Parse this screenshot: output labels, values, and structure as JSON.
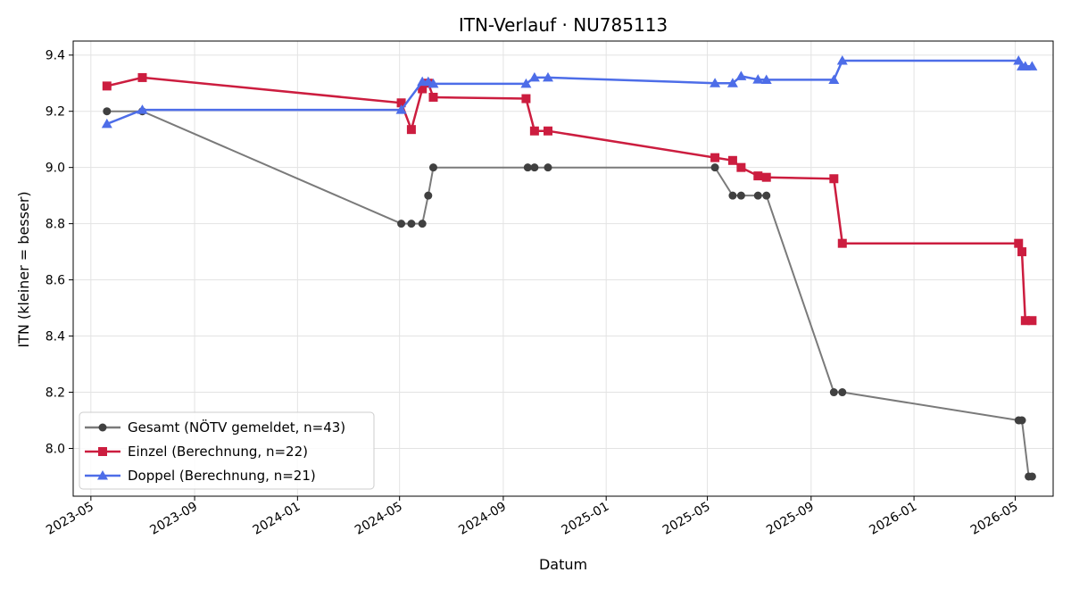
{
  "chart_data": {
    "type": "line",
    "title": "ITN-Verlauf · NU785113",
    "xlabel": "Datum",
    "ylabel": "ITN  (kleiner = besser)",
    "xlim": [
      "2023-04-10",
      "2026-06-15"
    ],
    "ylim": [
      7.83,
      9.45
    ],
    "x_ticks": [
      "2023-05",
      "2023-09",
      "2024-01",
      "2024-05",
      "2024-09",
      "2025-01",
      "2025-05",
      "2025-09",
      "2026-01",
      "2026-05"
    ],
    "y_ticks": [
      8.0,
      8.2,
      8.4,
      8.6,
      8.8,
      9.0,
      9.2,
      9.4
    ],
    "y_tick_labels": [
      "8.0",
      "8.2",
      "8.4",
      "8.6",
      "8.8",
      "9.0",
      "9.2",
      "9.4"
    ],
    "grid": true,
    "legend_position": "bottom-left",
    "series": [
      {
        "name": "Gesamt (NÖTV gemeldet, n=43)",
        "color": "#404040",
        "line_color": "#7a7a7a",
        "marker": "circle",
        "points": [
          [
            "2023-05-20",
            9.2
          ],
          [
            "2023-07-01",
            9.2
          ],
          [
            "2024-05-03",
            8.8
          ],
          [
            "2024-05-15",
            8.8
          ],
          [
            "2024-05-28",
            8.8
          ],
          [
            "2024-06-04",
            8.9
          ],
          [
            "2024-06-10",
            9.0
          ],
          [
            "2024-09-30",
            9.0
          ],
          [
            "2024-10-08",
            9.0
          ],
          [
            "2024-10-24",
            9.0
          ],
          [
            "2025-05-10",
            9.0
          ],
          [
            "2025-05-31",
            8.9
          ],
          [
            "2025-06-10",
            8.9
          ],
          [
            "2025-06-30",
            8.9
          ],
          [
            "2025-07-10",
            8.9
          ],
          [
            "2025-09-28",
            8.2
          ],
          [
            "2025-10-08",
            8.2
          ],
          [
            "2026-05-05",
            8.1
          ],
          [
            "2026-05-09",
            8.1
          ],
          [
            "2026-05-17",
            7.9
          ],
          [
            "2026-05-21",
            7.9
          ]
        ]
      },
      {
        "name": "Einzel (Berechnung, n=22)",
        "color": "#cc1d3f",
        "line_color": "#cc1d3f",
        "marker": "square",
        "points": [
          [
            "2023-05-20",
            9.29
          ],
          [
            "2023-07-01",
            9.32
          ],
          [
            "2024-05-03",
            9.23
          ],
          [
            "2024-05-15",
            9.135
          ],
          [
            "2024-05-28",
            9.28
          ],
          [
            "2024-06-04",
            9.3
          ],
          [
            "2024-06-10",
            9.25
          ],
          [
            "2024-09-28",
            9.245
          ],
          [
            "2024-10-08",
            9.13
          ],
          [
            "2024-10-24",
            9.13
          ],
          [
            "2025-05-10",
            9.035
          ],
          [
            "2025-05-31",
            9.025
          ],
          [
            "2025-06-10",
            9.0
          ],
          [
            "2025-06-30",
            8.97
          ],
          [
            "2025-07-10",
            8.965
          ],
          [
            "2025-09-28",
            8.96
          ],
          [
            "2025-10-08",
            8.73
          ],
          [
            "2026-05-05",
            8.73
          ],
          [
            "2026-05-09",
            8.7
          ],
          [
            "2026-05-13",
            8.455
          ],
          [
            "2026-05-21",
            8.455
          ]
        ]
      },
      {
        "name": "Doppel (Berechnung, n=21)",
        "color": "#4d6de8",
        "line_color": "#4d6de8",
        "marker": "triangle",
        "points": [
          [
            "2023-05-20",
            9.155
          ],
          [
            "2023-07-01",
            9.205
          ],
          [
            "2024-05-03",
            9.205
          ],
          [
            "2024-05-28",
            9.305
          ],
          [
            "2024-06-04",
            9.305
          ],
          [
            "2024-06-10",
            9.298
          ],
          [
            "2024-09-28",
            9.298
          ],
          [
            "2024-10-08",
            9.32
          ],
          [
            "2024-10-24",
            9.32
          ],
          [
            "2025-05-10",
            9.3
          ],
          [
            "2025-05-31",
            9.3
          ],
          [
            "2025-06-10",
            9.325
          ],
          [
            "2025-06-30",
            9.313
          ],
          [
            "2025-07-10",
            9.312
          ],
          [
            "2025-09-28",
            9.312
          ],
          [
            "2025-10-08",
            9.38
          ],
          [
            "2026-05-05",
            9.38
          ],
          [
            "2026-05-09",
            9.36
          ],
          [
            "2026-05-13",
            9.36
          ],
          [
            "2026-05-21",
            9.36
          ]
        ]
      }
    ]
  }
}
